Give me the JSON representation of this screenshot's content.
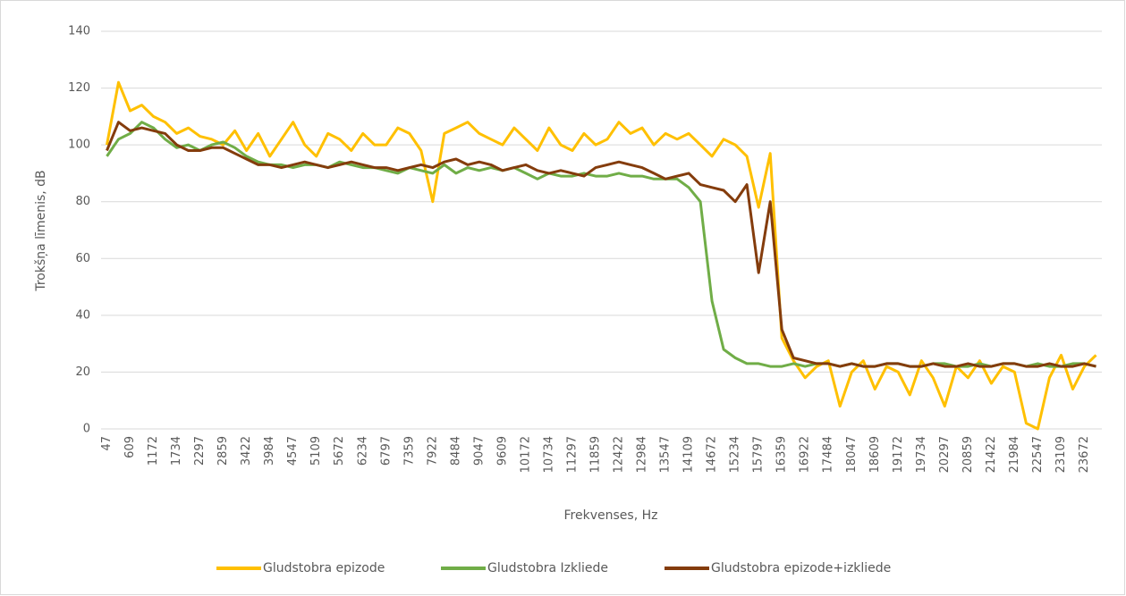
{
  "chart_data": {
    "type": "line",
    "x_label": "Frekvenses, Hz",
    "y_label": "Trokšņa līmenis, dB",
    "categories": [
      "47",
      null,
      "609",
      null,
      "1172",
      null,
      "1734",
      null,
      "2297",
      null,
      "2859",
      null,
      "3422",
      null,
      "3984",
      null,
      "4547",
      null,
      "5109",
      null,
      "5672",
      null,
      "6234",
      null,
      "6797",
      null,
      "7359",
      null,
      "7922",
      null,
      "8484",
      null,
      "9047",
      null,
      "9609",
      null,
      "10172",
      null,
      "10734",
      null,
      "11297",
      null,
      "11859",
      null,
      "12422",
      null,
      "12984",
      null,
      "13547",
      null,
      "14109",
      null,
      "14672",
      null,
      "15234",
      null,
      "15797",
      null,
      "16359",
      null,
      "16922",
      null,
      "17484",
      null,
      "18047",
      null,
      "18609",
      null,
      "19172",
      null,
      "19734",
      null,
      "20297",
      null,
      "20859",
      null,
      "21422",
      null,
      "21984",
      null,
      "22547",
      null,
      "23109",
      null,
      "23672",
      null
    ],
    "series": [
      {
        "name": "Gludstobra epizode",
        "color": "#ffc000",
        "values": [
          100,
          122,
          112,
          114,
          110,
          108,
          104,
          106,
          103,
          102,
          100,
          105,
          98,
          104,
          96,
          102,
          108,
          100,
          96,
          104,
          102,
          98,
          104,
          100,
          100,
          106,
          104,
          98,
          80,
          104,
          106,
          108,
          104,
          102,
          100,
          106,
          102,
          98,
          106,
          100,
          98,
          104,
          100,
          102,
          108,
          104,
          106,
          100,
          104,
          102,
          104,
          100,
          96,
          102,
          100,
          96,
          78,
          97,
          32,
          24,
          18,
          22,
          24,
          8,
          20,
          24,
          14,
          22,
          20,
          12,
          24,
          18,
          8,
          22,
          18,
          24,
          16,
          22,
          20,
          2,
          0,
          18,
          26,
          14,
          22,
          26
        ]
      },
      {
        "name": "Gludstobra Izkliede",
        "color": "#70ad47",
        "values": [
          96,
          102,
          104,
          108,
          106,
          102,
          99,
          100,
          98,
          100,
          101,
          99,
          96,
          94,
          93,
          93,
          92,
          93,
          93,
          92,
          94,
          93,
          92,
          92,
          91,
          90,
          92,
          91,
          90,
          93,
          90,
          92,
          91,
          92,
          91,
          92,
          90,
          88,
          90,
          89,
          89,
          90,
          89,
          89,
          90,
          89,
          89,
          88,
          88,
          88,
          85,
          80,
          45,
          28,
          25,
          23,
          23,
          22,
          22,
          23,
          22,
          23,
          23,
          22,
          23,
          22,
          22,
          23,
          23,
          22,
          22,
          23,
          23,
          22,
          22,
          23,
          22,
          23,
          23,
          22,
          23,
          22,
          22,
          23,
          23,
          22
        ]
      },
      {
        "name": "Gludstobra epizode+izkliede",
        "color": "#843c0c",
        "values": [
          98,
          108,
          105,
          106,
          105,
          104,
          100,
          98,
          98,
          99,
          99,
          97,
          95,
          93,
          93,
          92,
          93,
          94,
          93,
          92,
          93,
          94,
          93,
          92,
          92,
          91,
          92,
          93,
          92,
          94,
          95,
          93,
          94,
          93,
          91,
          92,
          93,
          91,
          90,
          91,
          90,
          89,
          92,
          93,
          94,
          93,
          92,
          90,
          88,
          89,
          90,
          86,
          85,
          84,
          80,
          86,
          55,
          80,
          35,
          25,
          24,
          23,
          23,
          22,
          23,
          22,
          22,
          23,
          23,
          22,
          22,
          23,
          22,
          22,
          23,
          22,
          22,
          23,
          23,
          22,
          22,
          23,
          22,
          22,
          23,
          22
        ]
      }
    ],
    "ylim": [
      0,
      140
    ],
    "yticks": [
      0,
      20,
      40,
      60,
      80,
      100,
      120,
      140
    ],
    "grid": true,
    "legend": "bottom"
  }
}
